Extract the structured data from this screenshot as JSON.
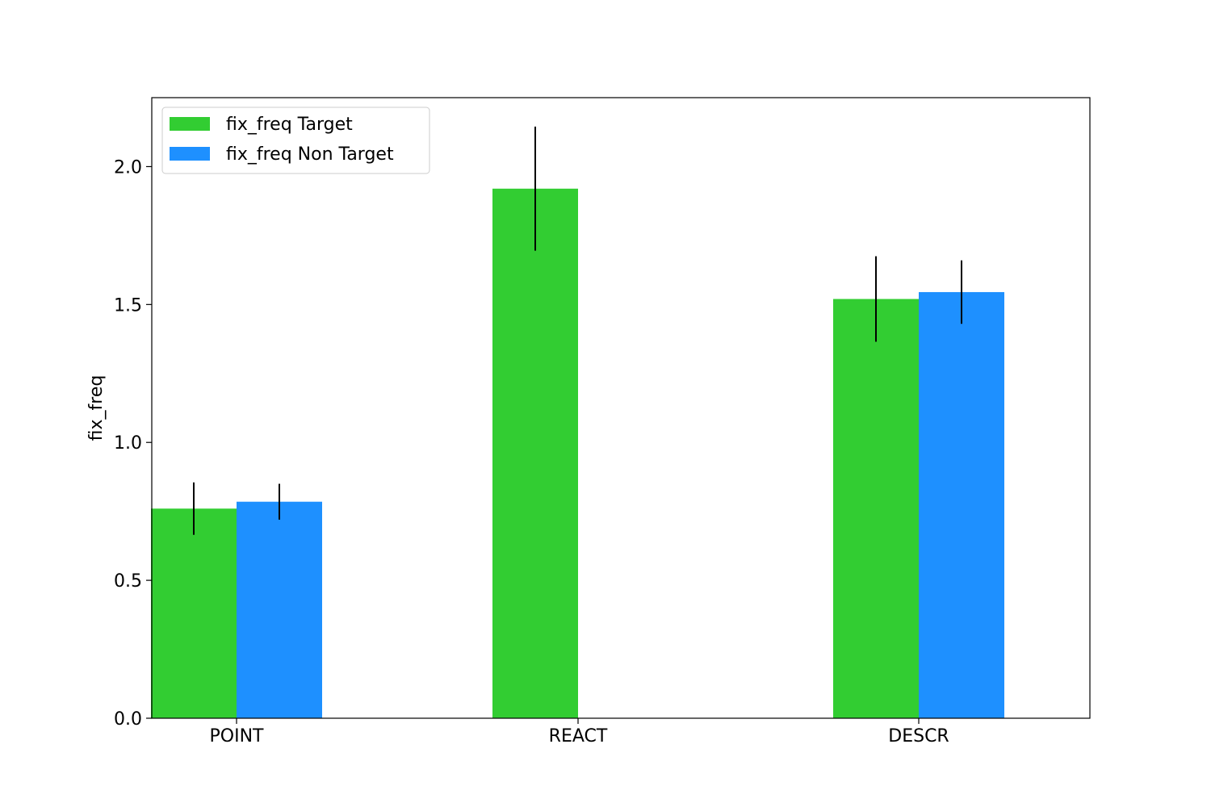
{
  "chart_data": {
    "type": "bar",
    "title": "",
    "xlabel": "",
    "ylabel": "fix_freq",
    "categories": [
      "POINT",
      "REACT",
      "DESCR"
    ],
    "series": [
      {
        "name": "fix_freq Target",
        "color": "#32cd32",
        "values": [
          0.76,
          1.92,
          1.52
        ],
        "error": [
          0.095,
          0.225,
          0.155
        ]
      },
      {
        "name": "fix_freq Non Target",
        "color": "#1e90ff",
        "values": [
          0.785,
          null,
          1.545
        ],
        "error": [
          0.065,
          null,
          0.115
        ]
      }
    ],
    "ylim": [
      0,
      2.25
    ],
    "yticks": [
      0.0,
      0.5,
      1.0,
      1.5,
      2.0
    ],
    "ytick_labels": [
      "0.0",
      "0.5",
      "1.0",
      "1.5",
      "2.0"
    ],
    "grid": false,
    "legend_position": "top-left"
  }
}
